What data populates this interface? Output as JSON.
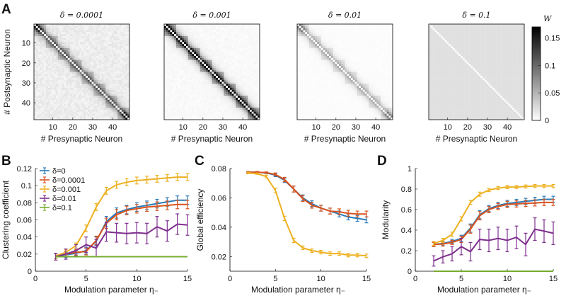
{
  "panel_letters": {
    "a": "A",
    "b": "B",
    "c": "C",
    "d": "D"
  },
  "colors": {
    "delta_0": "#2a7bb8",
    "delta_0_0001": "#d9531e",
    "delta_0_001": "#edb120",
    "delta_0_01": "#7e2f8e",
    "delta_0_1": "#77ac30"
  },
  "chart_data": [
    {
      "type": "heatmap",
      "id": "A1",
      "title": "δ = 0.0001",
      "xlabel": "# Presynaptic Neuron",
      "ylabel": "# Postsynaptic Neuron",
      "x_ticks": [
        "10",
        "20",
        "30",
        "40"
      ],
      "y_ticks": [
        "10",
        "20",
        "30",
        "40"
      ],
      "size": 48,
      "background": 0.006,
      "diag_strength": 0.075,
      "block_size": 6,
      "corner_peak": 0.16
    },
    {
      "type": "heatmap",
      "id": "A2",
      "title": "δ = 0.001",
      "xlabel": "# Presynaptic Neuron",
      "ylabel": "",
      "x_ticks": [
        "10",
        "20",
        "30",
        "40"
      ],
      "y_ticks": [],
      "size": 48,
      "background": 0.002,
      "diag_strength": 0.12,
      "block_size": 6,
      "corner_peak": 0.17
    },
    {
      "type": "heatmap",
      "id": "A3",
      "title": "δ = 0.01",
      "xlabel": "# Presynaptic Neuron",
      "ylabel": "",
      "x_ticks": [
        "10",
        "20",
        "30",
        "40"
      ],
      "y_ticks": [],
      "size": 48,
      "background": 0.001,
      "diag_strength": 0.04,
      "block_size": 6,
      "corner_peak": 0.09
    },
    {
      "type": "heatmap",
      "id": "A4",
      "title": "δ = 0.1",
      "xlabel": "# Presynaptic Neuron",
      "ylabel": "",
      "x_ticks": [
        "10",
        "20",
        "30",
        "40"
      ],
      "y_ticks": [],
      "size": 48,
      "background": 0.021,
      "diag_strength": 0,
      "block_size": 6,
      "corner_peak": 0
    },
    {
      "type": "colorbar",
      "id": "A-colorbar",
      "label": "W",
      "range": [
        0,
        0.17
      ],
      "ticks": [
        "0.15",
        "0.1",
        "0.05",
        "0"
      ],
      "tick_values": [
        0.15,
        0.1,
        0.05,
        0
      ]
    },
    {
      "type": "line",
      "id": "B",
      "xlabel": "Modulation parameter η₋",
      "ylabel": "Clustering coefficient",
      "xlim": [
        0,
        15
      ],
      "ylim": [
        0,
        0.12
      ],
      "x_ticks": [
        "0",
        "5",
        "10",
        "15"
      ],
      "x_tick_values": [
        0,
        5,
        10,
        15
      ],
      "y_ticks": [
        "0",
        "0.02",
        "0.04",
        "0.06",
        "0.08",
        "0.1",
        "0.12"
      ],
      "y_tick_values": [
        0,
        0.02,
        0.04,
        0.06,
        0.08,
        0.1,
        0.12
      ],
      "legend": {
        "position": "top-left",
        "entries": [
          "δ=0",
          "δ=0.0001",
          "δ=0.001",
          "δ=0.01",
          "δ=0.1"
        ]
      },
      "x": [
        2,
        3,
        4,
        5,
        6,
        7,
        8,
        9,
        10,
        11,
        12,
        13,
        14,
        15
      ],
      "series": [
        {
          "name": "δ=0",
          "color_key": "delta_0",
          "values": [
            0.018,
            0.019,
            0.021,
            0.024,
            0.035,
            0.058,
            0.068,
            0.072,
            0.075,
            0.077,
            0.079,
            0.081,
            0.083,
            0.083
          ],
          "errors": [
            0.003,
            0.003,
            0.003,
            0.004,
            0.005,
            0.006,
            0.006,
            0.005,
            0.005,
            0.005,
            0.005,
            0.005,
            0.005,
            0.005
          ]
        },
        {
          "name": "δ=0.0001",
          "color_key": "delta_0_0001",
          "values": [
            0.018,
            0.02,
            0.022,
            0.023,
            0.036,
            0.056,
            0.066,
            0.071,
            0.073,
            0.075,
            0.076,
            0.077,
            0.078,
            0.078
          ],
          "errors": [
            0.003,
            0.003,
            0.003,
            0.004,
            0.005,
            0.006,
            0.006,
            0.005,
            0.005,
            0.005,
            0.005,
            0.005,
            0.005,
            0.005
          ]
        },
        {
          "name": "δ=0.001",
          "color_key": "delta_0_001",
          "values": [
            0.018,
            0.022,
            0.03,
            0.05,
            0.075,
            0.094,
            0.101,
            0.104,
            0.106,
            0.107,
            0.108,
            0.109,
            0.11,
            0.11
          ],
          "errors": [
            0.003,
            0.003,
            0.003,
            0.004,
            0.004,
            0.004,
            0.004,
            0.004,
            0.004,
            0.004,
            0.004,
            0.004,
            0.004,
            0.004
          ]
        },
        {
          "name": "δ=0.01",
          "color_key": "delta_0_01",
          "values": [
            0.017,
            0.02,
            0.024,
            0.031,
            0.027,
            0.046,
            0.045,
            0.044,
            0.045,
            0.044,
            0.052,
            0.047,
            0.055,
            0.054
          ],
          "errors": [
            0.004,
            0.006,
            0.007,
            0.009,
            0.01,
            0.011,
            0.011,
            0.012,
            0.012,
            0.012,
            0.012,
            0.012,
            0.012,
            0.012
          ]
        },
        {
          "name": "δ=0.1",
          "color_key": "delta_0_1",
          "values": [
            0.017,
            0.017,
            0.017,
            0.017,
            0.017,
            0.017,
            0.017,
            0.017,
            0.017,
            0.017,
            0.017,
            0.017,
            0.017,
            0.017
          ],
          "errors": [
            0,
            0,
            0,
            0,
            0,
            0,
            0,
            0,
            0,
            0,
            0,
            0,
            0,
            0
          ]
        }
      ]
    },
    {
      "type": "line",
      "id": "C",
      "xlabel": "Modulation parameter η₋",
      "ylabel": "Global efficiency",
      "xlim": [
        0,
        15
      ],
      "ylim": [
        0.01,
        0.08
      ],
      "x_ticks": [
        "0",
        "5",
        "10",
        "15"
      ],
      "x_tick_values": [
        0,
        5,
        10,
        15
      ],
      "y_ticks": [
        "0.02",
        "0.04",
        "0.06",
        "0.08"
      ],
      "y_tick_values": [
        0.02,
        0.04,
        0.06,
        0.08
      ],
      "x": [
        2,
        3,
        4,
        5,
        6,
        7,
        8,
        9,
        10,
        11,
        12,
        13,
        14,
        15
      ],
      "series": [
        {
          "name": "δ=0",
          "color_key": "delta_0",
          "values": [
            0.0775,
            0.0775,
            0.077,
            0.0755,
            0.072,
            0.066,
            0.06,
            0.056,
            0.053,
            0.051,
            0.049,
            0.047,
            0.046,
            0.045
          ],
          "errors": [
            0.0005,
            0.0005,
            0.0005,
            0.001,
            0.0015,
            0.002,
            0.002,
            0.002,
            0.002,
            0.002,
            0.002,
            0.002,
            0.002,
            0.002
          ]
        },
        {
          "name": "δ=0.0001",
          "color_key": "delta_0_0001",
          "values": [
            0.0775,
            0.0775,
            0.0772,
            0.076,
            0.0725,
            0.066,
            0.0595,
            0.055,
            0.053,
            0.051,
            0.0505,
            0.0495,
            0.049,
            0.049
          ],
          "errors": [
            0.0005,
            0.0005,
            0.0005,
            0.001,
            0.0015,
            0.002,
            0.002,
            0.002,
            0.002,
            0.002,
            0.002,
            0.002,
            0.002,
            0.002
          ]
        },
        {
          "name": "δ=0.001",
          "color_key": "delta_0_001",
          "values": [
            0.077,
            0.0765,
            0.0745,
            0.065,
            0.046,
            0.031,
            0.026,
            0.024,
            0.023,
            0.022,
            0.022,
            0.021,
            0.021,
            0.0205
          ],
          "errors": [
            0.0005,
            0.0005,
            0.001,
            0.0015,
            0.0015,
            0.0015,
            0.0012,
            0.0012,
            0.0012,
            0.0012,
            0.0012,
            0.0012,
            0.0012,
            0.0012
          ]
        }
      ]
    },
    {
      "type": "line",
      "id": "D",
      "xlabel": "Modulation parameter η₋",
      "ylabel": "Modularity",
      "xlim": [
        0,
        15
      ],
      "ylim": [
        0,
        1
      ],
      "x_ticks": [
        "0",
        "5",
        "10",
        "15"
      ],
      "x_tick_values": [
        0,
        5,
        10,
        15
      ],
      "y_ticks": [
        "0",
        "0.2",
        "0.4",
        "0.6",
        "0.8",
        "1"
      ],
      "y_tick_values": [
        0,
        0.2,
        0.4,
        0.6,
        0.8,
        1
      ],
      "x": [
        2,
        3,
        4,
        5,
        6,
        7,
        8,
        9,
        10,
        11,
        12,
        13,
        14,
        15
      ],
      "series": [
        {
          "name": "δ=0",
          "color_key": "delta_0",
          "values": [
            0.26,
            0.27,
            0.29,
            0.32,
            0.42,
            0.55,
            0.61,
            0.64,
            0.66,
            0.67,
            0.68,
            0.69,
            0.7,
            0.7
          ],
          "errors": [
            0.02,
            0.02,
            0.02,
            0.03,
            0.04,
            0.04,
            0.03,
            0.03,
            0.03,
            0.03,
            0.03,
            0.03,
            0.03,
            0.03
          ]
        },
        {
          "name": "δ=0.0001",
          "color_key": "delta_0_0001",
          "values": [
            0.26,
            0.265,
            0.28,
            0.31,
            0.41,
            0.54,
            0.6,
            0.63,
            0.65,
            0.655,
            0.66,
            0.665,
            0.67,
            0.67
          ],
          "errors": [
            0.02,
            0.02,
            0.02,
            0.03,
            0.04,
            0.04,
            0.03,
            0.03,
            0.03,
            0.03,
            0.03,
            0.03,
            0.03,
            0.03
          ]
        },
        {
          "name": "δ=0.001",
          "color_key": "delta_0_001",
          "values": [
            0.27,
            0.3,
            0.36,
            0.51,
            0.67,
            0.75,
            0.79,
            0.81,
            0.82,
            0.82,
            0.825,
            0.83,
            0.83,
            0.83
          ],
          "errors": [
            0.02,
            0.02,
            0.02,
            0.02,
            0.02,
            0.02,
            0.015,
            0.015,
            0.015,
            0.015,
            0.015,
            0.015,
            0.015,
            0.015
          ]
        },
        {
          "name": "δ=0.01",
          "color_key": "delta_0_01",
          "values": [
            0.1,
            0.14,
            0.17,
            0.24,
            0.19,
            0.31,
            0.3,
            0.32,
            0.3,
            0.33,
            0.26,
            0.41,
            0.39,
            0.37
          ],
          "errors": [
            0.05,
            0.06,
            0.07,
            0.08,
            0.09,
            0.1,
            0.11,
            0.11,
            0.11,
            0.11,
            0.11,
            0.11,
            0.11,
            0.11
          ]
        },
        {
          "name": "δ=0.1",
          "color_key": "delta_0_1",
          "values": [
            0,
            0,
            0,
            0,
            0,
            0,
            0,
            0,
            0,
            0,
            0,
            0,
            0,
            0
          ],
          "errors": [
            0,
            0,
            0,
            0,
            0,
            0,
            0,
            0,
            0,
            0,
            0,
            0,
            0,
            0
          ]
        }
      ]
    }
  ]
}
